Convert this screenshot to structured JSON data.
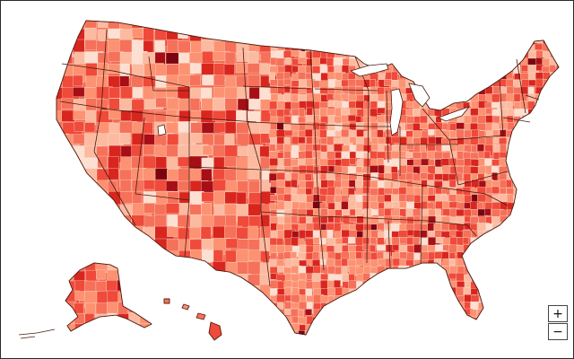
{
  "map": {
    "zoom_in_label": "+",
    "zoom_out_label": "−",
    "palette": [
      "#fde0d2",
      "#fcbba1",
      "#fc9272",
      "#f6715a",
      "#ef4a3a",
      "#d8261f",
      "#a50f15",
      "#7a0510"
    ],
    "state_color": "#f26b52",
    "border_color": "#4a1a10",
    "lake_color": "#ffffff"
  }
}
